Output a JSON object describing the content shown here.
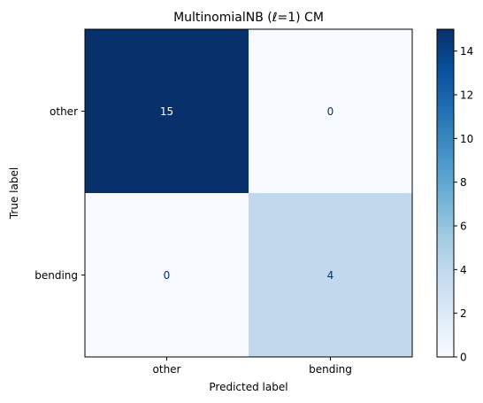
{
  "chart_data": {
    "type": "heatmap",
    "title": "MultinomialNB (ℓ=1) CM",
    "xlabel": "Predicted label",
    "ylabel": "True label",
    "x_categories": [
      "other",
      "bending"
    ],
    "y_categories": [
      "other",
      "bending"
    ],
    "matrix": [
      [
        15,
        0
      ],
      [
        0,
        4
      ]
    ],
    "colormap": "Blues",
    "colorbar": {
      "min": 0,
      "max": 15,
      "ticks": [
        "0",
        "2",
        "4",
        "6",
        "8",
        "10",
        "12",
        "14"
      ]
    },
    "cell_colors": {
      "high": "#08306b",
      "low": "#f7fbff",
      "mid": "#c1d9ed"
    },
    "text_colors": {
      "on_dark": "#ffffff",
      "on_light": "#08306b"
    }
  }
}
